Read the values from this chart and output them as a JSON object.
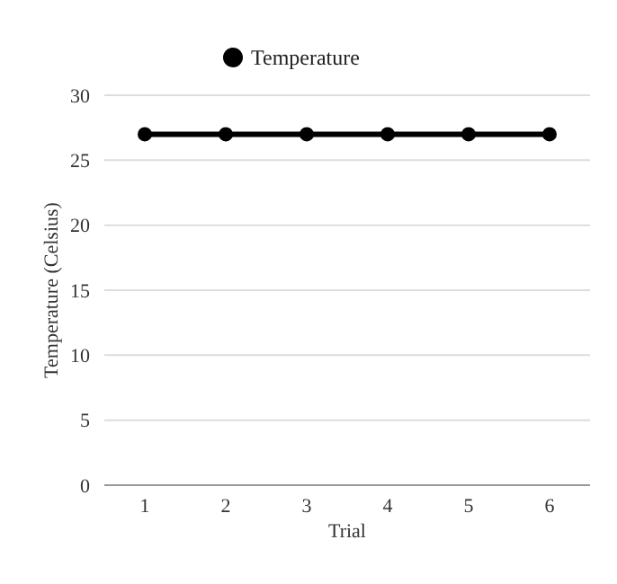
{
  "chart_data": {
    "type": "line",
    "xlabel": "Trial",
    "ylabel": "Temperature (Celsius)",
    "categories": [
      "1",
      "2",
      "3",
      "4",
      "5",
      "6"
    ],
    "series": [
      {
        "name": "Temperature",
        "color": "#000000",
        "values": [
          27,
          27,
          27,
          27,
          27,
          27
        ]
      }
    ],
    "ylim": [
      0,
      30
    ],
    "yticks": [
      0,
      5,
      10,
      15,
      20,
      25,
      30
    ],
    "grid": "y",
    "legend": "top",
    "marker": "circle",
    "line_style": "solid"
  }
}
